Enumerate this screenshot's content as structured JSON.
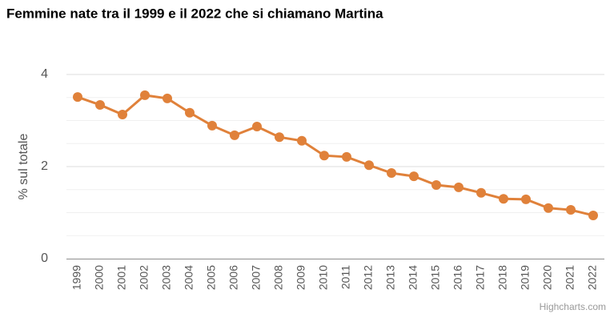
{
  "chart_data": {
    "type": "line",
    "title": "Femmine nate tra il 1999 e il 2022 che si chiamano Martina",
    "y_axis_label": "% sul totale",
    "credit": "Highcharts.com",
    "categories": [
      "1999",
      "2000",
      "2001",
      "2002",
      "2003",
      "2004",
      "2005",
      "2006",
      "2007",
      "2008",
      "2009",
      "2010",
      "2011",
      "2012",
      "2013",
      "2014",
      "2015",
      "2016",
      "2017",
      "2018",
      "2019",
      "2020",
      "2021",
      "2022"
    ],
    "series": [
      {
        "name": "Martina",
        "color": "#e0813a",
        "values": [
          3.51,
          3.34,
          3.13,
          3.55,
          3.48,
          3.17,
          2.89,
          2.68,
          2.87,
          2.64,
          2.56,
          2.24,
          2.21,
          2.03,
          1.86,
          1.79,
          1.6,
          1.55,
          1.43,
          1.3,
          1.29,
          1.1,
          1.06,
          0.94
        ]
      }
    ],
    "ylim": [
      0,
      4
    ],
    "yticks": [
      0,
      2,
      4
    ],
    "yminorticks": [
      0.5,
      1,
      1.5,
      2.5,
      3,
      3.5
    ],
    "grid": true
  }
}
